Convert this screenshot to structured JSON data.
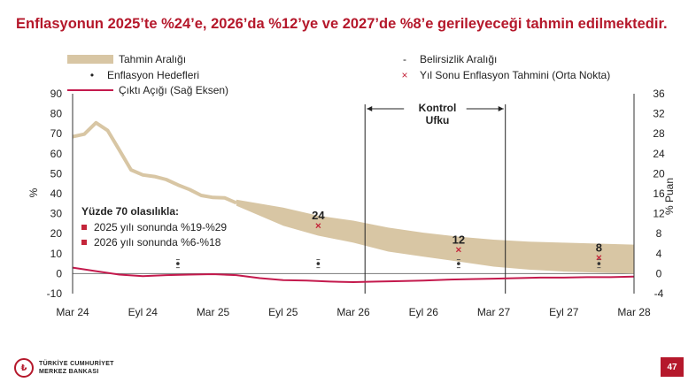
{
  "title": "Enflasyonun 2025’te %24’e, 2026’da %12’ye ve 2027’de %8’e gerileyeceği tahmin edilmektedir.",
  "legend": [
    {
      "label": "Tahmin Aralığı",
      "kind": "band",
      "color": "#d8c6a4"
    },
    {
      "label": "Belirsizlik Aralığı",
      "kind": "dash",
      "color": "#444444"
    },
    {
      "label": "Enflasyon Hedefleri",
      "kind": "dot",
      "color": "#333333"
    },
    {
      "label": "Yıl Sonu Enflasyon Tahmini (Orta Nokta)",
      "kind": "x",
      "color": "#c4253a"
    },
    {
      "label": "Çıktı Açığı (Sağ Eksen)",
      "kind": "line",
      "color": "#c41a4d"
    }
  ],
  "control_horizon": {
    "line1": "Kontrol",
    "line2": "Ufku"
  },
  "probability_box": {
    "heading": "Yüzde 70 olasılıkla:",
    "items": [
      "2025 yılı sonunda %19-%29",
      "2026 yılı sonunda %6-%18"
    ],
    "bullet_color": "#c4253a"
  },
  "footer": {
    "logo_line1": "TÜRKİYE CUMHURİYET",
    "logo_line2": "MERKEZ BANKASI",
    "page_number": "47"
  },
  "chart_data": {
    "type": "line",
    "title": "Enflasyonun 2025’te %24’e, 2026’da %12’ye ve 2027’de %8’e gerileyeceği tahmin edilmektedir.",
    "ylabel": "%",
    "y2label": "% Puan",
    "ylim": [
      -10,
      90
    ],
    "y2lim": [
      -4,
      36
    ],
    "yticks": [
      -10,
      0,
      10,
      20,
      30,
      40,
      50,
      60,
      70,
      80,
      90
    ],
    "y2ticks": [
      -4,
      0,
      4,
      8,
      12,
      16,
      20,
      24,
      28,
      32,
      36
    ],
    "x_tick_labels": [
      "Mar 24",
      "Eyl 24",
      "Mar 25",
      "Eyl 25",
      "Mar 26",
      "Eyl 26",
      "Mar 27",
      "Eyl 27",
      "Mar 28"
    ],
    "x_range_months": [
      0,
      48
    ],
    "colors": {
      "band": "#d8c6a4",
      "inflation": "#d8c6a4",
      "output_gap": "#c41a4d",
      "forecast_mark": "#c4253a",
      "target": "#333333"
    },
    "inflation_actual": {
      "name": "Enflasyon",
      "x": [
        0,
        1,
        2,
        3,
        4,
        5,
        6,
        7,
        8,
        9,
        10,
        11,
        12,
        13,
        14
      ],
      "y": [
        68.5,
        69.8,
        75.5,
        71.6,
        61.8,
        51.9,
        49.4,
        48.6,
        47.1,
        44.4,
        42.1,
        39.1,
        38.1,
        37.9,
        35.4
      ]
    },
    "forecast_band": {
      "name": "Tahmin Aralığı",
      "x": [
        14,
        18,
        21,
        24,
        27,
        30,
        33,
        36,
        39,
        42,
        45,
        48
      ],
      "upper": [
        37,
        33,
        29,
        26.5,
        23,
        20.5,
        18.5,
        17,
        16,
        15.5,
        15,
        14.5
      ],
      "lower": [
        34,
        24,
        19,
        15.5,
        11,
        8.5,
        6,
        3.5,
        2,
        1,
        0.5,
        0
      ]
    },
    "year_end_forecasts": [
      {
        "x": 21,
        "value": 24,
        "label": "24"
      },
      {
        "x": 33,
        "value": 12,
        "label": "12"
      },
      {
        "x": 45,
        "value": 8,
        "label": "8"
      }
    ],
    "inflation_targets": [
      {
        "x": 9,
        "value": 5,
        "band": [
          3,
          7
        ]
      },
      {
        "x": 21,
        "value": 5,
        "band": [
          3,
          7
        ]
      },
      {
        "x": 33,
        "value": 5,
        "band": [
          3,
          7
        ]
      },
      {
        "x": 45,
        "value": 5,
        "band": [
          3,
          7
        ]
      }
    ],
    "output_gap": {
      "name": "Çıktı Açığı (Sağ Eksen)",
      "x": [
        0,
        2,
        4,
        6,
        8,
        10,
        12,
        14,
        16,
        18,
        20,
        22,
        24,
        26,
        28,
        30,
        32,
        34,
        36,
        38,
        40,
        42,
        44,
        46,
        48
      ],
      "y": [
        1.2,
        0.5,
        -0.2,
        -0.5,
        -0.3,
        -0.2,
        -0.1,
        -0.3,
        -0.9,
        -1.3,
        -1.4,
        -1.6,
        -1.7,
        -1.6,
        -1.5,
        -1.4,
        -1.2,
        -1.1,
        -1.0,
        -0.9,
        -0.8,
        -0.8,
        -0.7,
        -0.7,
        -0.6
      ]
    },
    "control_horizon_range": [
      25,
      37
    ]
  }
}
